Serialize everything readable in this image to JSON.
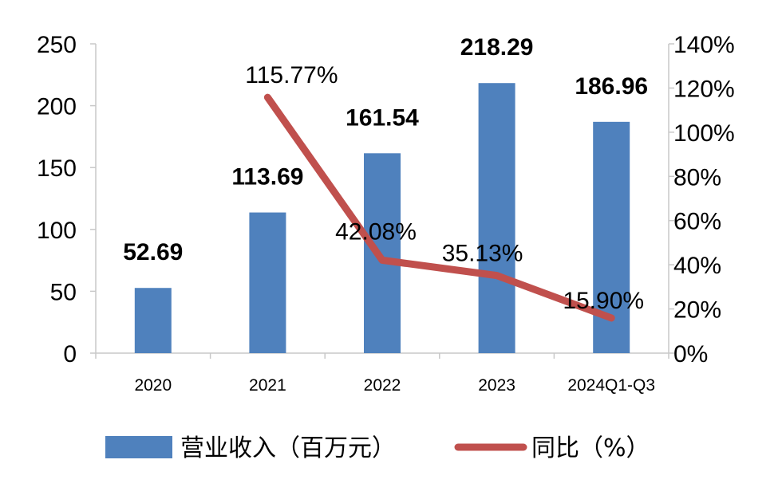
{
  "chart_data": {
    "type": "bar",
    "categories": [
      "2020",
      "2021",
      "2022",
      "2023",
      "2024Q1-Q3"
    ],
    "series": [
      {
        "name": "营业收入（百万元）",
        "type": "bar",
        "axis": "left",
        "values": [
          52.69,
          113.69,
          161.54,
          218.29,
          186.96
        ],
        "labels": [
          "52.69",
          "113.69",
          "161.54",
          "218.29",
          "186.96"
        ]
      },
      {
        "name": "同比（%）",
        "type": "line",
        "axis": "right",
        "values": [
          null,
          115.77,
          42.08,
          35.13,
          15.9
        ],
        "labels": [
          "",
          "115.77%",
          "42.08%",
          "35.13%",
          "15.90%"
        ]
      }
    ],
    "y_left": {
      "ylim": [
        0,
        250
      ],
      "ticks": [
        "0",
        "50",
        "100",
        "150",
        "200",
        "250"
      ]
    },
    "y_right": {
      "ylim": [
        0,
        140
      ],
      "ticks": [
        "0%",
        "20%",
        "40%",
        "60%",
        "80%",
        "100%",
        "120%",
        "140%"
      ]
    },
    "grid": false,
    "legend": "bottom",
    "colors": {
      "bar": "#4f81bd",
      "line": "#c0504d",
      "axis": "#c8c8c8"
    }
  }
}
